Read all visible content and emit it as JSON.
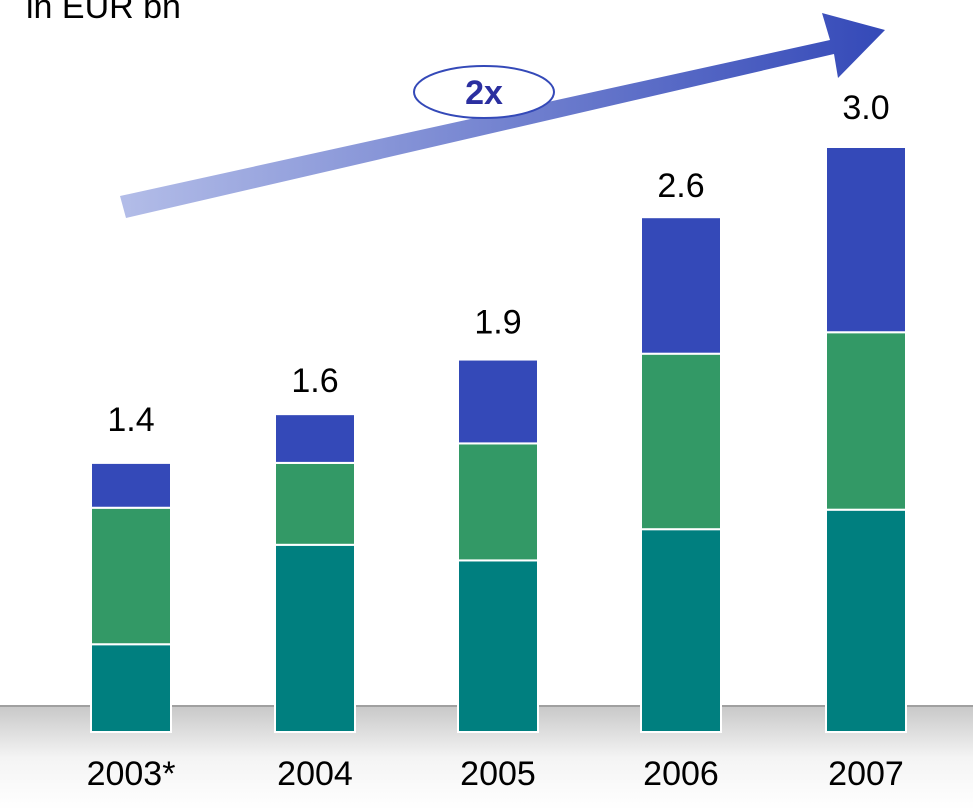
{
  "chart_data": {
    "type": "stacked-bar",
    "title": "in EUR bn",
    "annotation": "2x",
    "categories": [
      "2003*",
      "2004",
      "2005",
      "2006",
      "2007"
    ],
    "series": [
      {
        "color": "#007f7f",
        "values": [
          0.45,
          0.96,
          0.88,
          1.04,
          1.14
        ]
      },
      {
        "color": "#339966",
        "values": [
          0.7,
          0.42,
          0.6,
          0.9,
          0.91
        ]
      },
      {
        "color": "#3449b8",
        "values": [
          0.23,
          0.25,
          0.43,
          0.7,
          0.95
        ]
      }
    ],
    "totals": [
      1.4,
      1.6,
      1.9,
      2.6,
      3
    ],
    "total_labels": [
      "1.4",
      "1.6",
      "1.9",
      "2.6",
      "3.0"
    ]
  }
}
